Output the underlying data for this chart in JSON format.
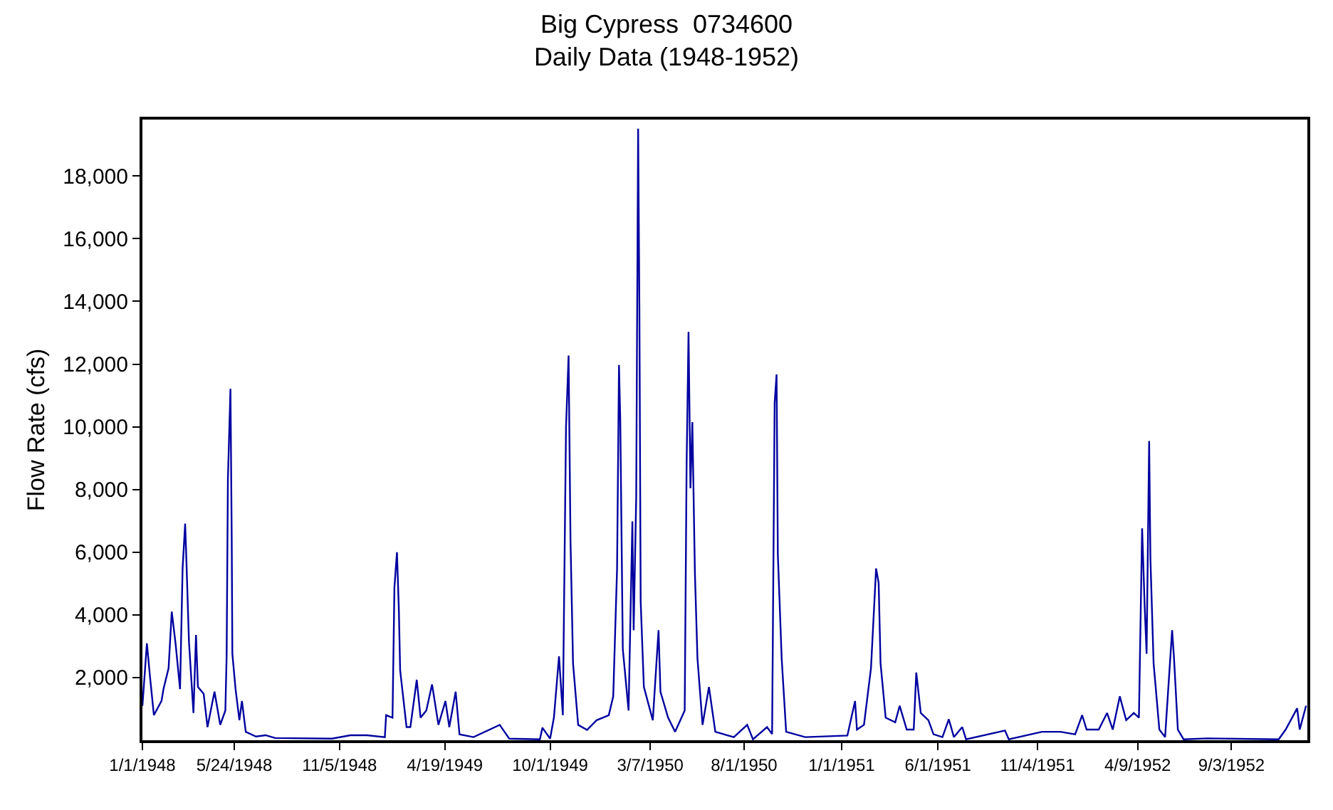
{
  "chart_data": {
    "type": "line",
    "title": "Big Cypress  0734600",
    "subtitle": "Daily Data (1948-1952)",
    "ylabel": "Flow Rate (cfs)",
    "x": [
      "1948-01-01",
      "1948-01-08",
      "1948-01-13",
      "1948-01-19",
      "1948-01-31",
      "1948-02-03",
      "1948-02-11",
      "1948-02-16",
      "1948-02-22",
      "1948-02-29",
      "1948-03-04",
      "1948-03-08",
      "1948-03-10",
      "1948-03-14",
      "1948-03-21",
      "1948-03-25",
      "1948-03-28",
      "1948-04-06",
      "1948-04-12",
      "1948-04-23",
      "1948-05-02",
      "1948-05-10",
      "1948-05-12",
      "1948-05-14",
      "1948-05-18",
      "1948-05-20",
      "1948-05-21",
      "1948-05-26",
      "1948-06-01",
      "1948-06-05",
      "1948-06-11",
      "1948-06-27",
      "1948-07-12",
      "1948-07-27",
      "1948-10-24",
      "1948-11-22",
      "1948-12-18",
      "1949-01-15",
      "1949-01-17",
      "1949-01-27",
      "1949-01-30",
      "1949-02-03",
      "1949-02-06",
      "1949-02-08",
      "1949-02-18",
      "1949-02-24",
      "1949-03-06",
      "1949-03-12",
      "1949-03-21",
      "1949-03-30",
      "1949-04-09",
      "1949-04-20",
      "1949-04-26",
      "1949-05-06",
      "1949-05-12",
      "1949-06-03",
      "1949-07-14",
      "1949-07-29",
      "1949-09-15",
      "1949-09-19",
      "1949-10-01",
      "1949-10-07",
      "1949-10-15",
      "1949-10-21",
      "1949-10-26",
      "1949-10-30",
      "1949-11-02",
      "1949-11-06",
      "1949-11-14",
      "1949-11-28",
      "1949-12-13",
      "1950-01-01",
      "1950-01-08",
      "1950-01-14",
      "1950-01-17",
      "1950-01-19",
      "1950-01-23",
      "1950-02-01",
      "1950-02-07",
      "1950-02-09",
      "1950-02-13",
      "1950-02-16",
      "1950-02-18",
      "1950-02-20",
      "1950-02-25",
      "1950-03-11",
      "1950-03-20",
      "1950-03-23",
      "1950-04-04",
      "1950-04-15",
      "1950-04-30",
      "1950-05-03",
      "1950-05-06",
      "1950-05-09",
      "1950-05-12",
      "1950-05-16",
      "1950-05-20",
      "1950-05-28",
      "1950-06-07",
      "1950-06-17",
      "1950-07-16",
      "1950-08-06",
      "1950-08-15",
      "1950-09-06",
      "1950-09-14",
      "1950-09-18",
      "1950-09-21",
      "1950-09-23",
      "1950-09-29",
      "1950-10-06",
      "1950-11-05",
      "1951-01-10",
      "1951-01-22",
      "1951-01-25",
      "1951-02-05",
      "1951-02-16",
      "1951-02-24",
      "1951-02-28",
      "1951-03-03",
      "1951-03-11",
      "1951-03-26",
      "1951-04-02",
      "1951-04-13",
      "1951-04-24",
      "1951-04-28",
      "1951-05-05",
      "1951-05-17",
      "1951-05-25",
      "1951-06-08",
      "1951-06-18",
      "1951-06-26",
      "1951-07-09",
      "1951-07-15",
      "1951-09-14",
      "1951-09-20",
      "1951-11-11",
      "1951-12-10",
      "1952-01-02",
      "1952-01-13",
      "1952-01-20",
      "1952-02-08",
      "1952-02-21",
      "1952-03-01",
      "1952-03-12",
      "1952-03-22",
      "1952-04-03",
      "1952-04-11",
      "1952-04-16",
      "1952-04-20",
      "1952-04-23",
      "1952-04-27",
      "1952-04-29",
      "1952-05-04",
      "1952-05-13",
      "1952-05-22",
      "1952-06-02",
      "1952-06-05",
      "1952-06-11",
      "1952-06-20",
      "1952-07-27",
      "1952-11-16",
      "1952-11-27",
      "1952-12-15",
      "1952-12-19",
      "1952-12-29"
    ],
    "series": [
      {
        "color": "#0000a0",
        "values": [
          1100,
          3090,
          2000,
          800,
          1260,
          1630,
          2300,
          4100,
          3080,
          1630,
          5480,
          6910,
          5700,
          3130,
          870,
          3360,
          1700,
          1480,
          420,
          1550,
          490,
          950,
          2680,
          8340,
          11210,
          6380,
          2760,
          1630,
          640,
          1250,
          270,
          120,
          160,
          70,
          50,
          160,
          160,
          100,
          800,
          720,
          4870,
          6000,
          4120,
          2230,
          420,
          420,
          1930,
          720,
          950,
          1780,
          490,
          1250,
          420,
          1550,
          190,
          100,
          490,
          50,
          30,
          400,
          50,
          720,
          2680,
          800,
          10000,
          12270,
          6380,
          2450,
          490,
          330,
          640,
          800,
          1400,
          5480,
          11970,
          10230,
          2910,
          950,
          6980,
          3510,
          7740,
          19510,
          13780,
          4420,
          1700,
          640,
          3510,
          1550,
          720,
          270,
          950,
          8800,
          13030,
          8040,
          10150,
          5330,
          2610,
          490,
          1700,
          270,
          100,
          490,
          30,
          420,
          200,
          10760,
          11670,
          5930,
          2610,
          270,
          100,
          150,
          1250,
          340,
          490,
          2300,
          5480,
          5020,
          2450,
          720,
          570,
          1100,
          340,
          340,
          2160,
          870,
          640,
          190,
          100,
          670,
          100,
          420,
          30,
          310,
          30,
          270,
          270,
          190,
          800,
          340,
          340,
          870,
          340,
          1400,
          640,
          870,
          720,
          6760,
          4270,
          2760,
          9550,
          5780,
          2450,
          340,
          100,
          3510,
          2610,
          340,
          30,
          60,
          30,
          340,
          1020,
          340,
          1100
        ]
      }
    ],
    "xlim": [
      "1948-01-01",
      "1952-12-31"
    ],
    "xticks": [
      {
        "value": "1948-01-01",
        "label": "1/1/1948"
      },
      {
        "value": "1948-05-24",
        "label": "5/24/1948"
      },
      {
        "value": "1948-11-05",
        "label": "11/5/1948"
      },
      {
        "value": "1949-04-19",
        "label": "4/19/1949"
      },
      {
        "value": "1949-10-01",
        "label": "10/1/1949"
      },
      {
        "value": "1950-03-07",
        "label": "3/7/1950"
      },
      {
        "value": "1950-08-01",
        "label": "8/1/1950"
      },
      {
        "value": "1951-01-01",
        "label": "1/1/1951"
      },
      {
        "value": "1951-06-01",
        "label": "6/1/1951"
      },
      {
        "value": "1951-11-04",
        "label": "11/4/1951"
      },
      {
        "value": "1952-04-09",
        "label": "4/9/1952"
      },
      {
        "value": "1952-09-03",
        "label": "9/3/1952"
      }
    ],
    "ylim": [
      0,
      19800
    ],
    "yticks": [
      {
        "value": 2000,
        "label": "2,000"
      },
      {
        "value": 4000,
        "label": "4,000"
      },
      {
        "value": 6000,
        "label": "6,000"
      },
      {
        "value": 8000,
        "label": "8,000"
      },
      {
        "value": 10000,
        "label": "10,000"
      },
      {
        "value": 12000,
        "label": "12,000"
      },
      {
        "value": 14000,
        "label": "14,000"
      },
      {
        "value": 16000,
        "label": "16,000"
      },
      {
        "value": 18000,
        "label": "18,000"
      }
    ],
    "grid": false
  }
}
